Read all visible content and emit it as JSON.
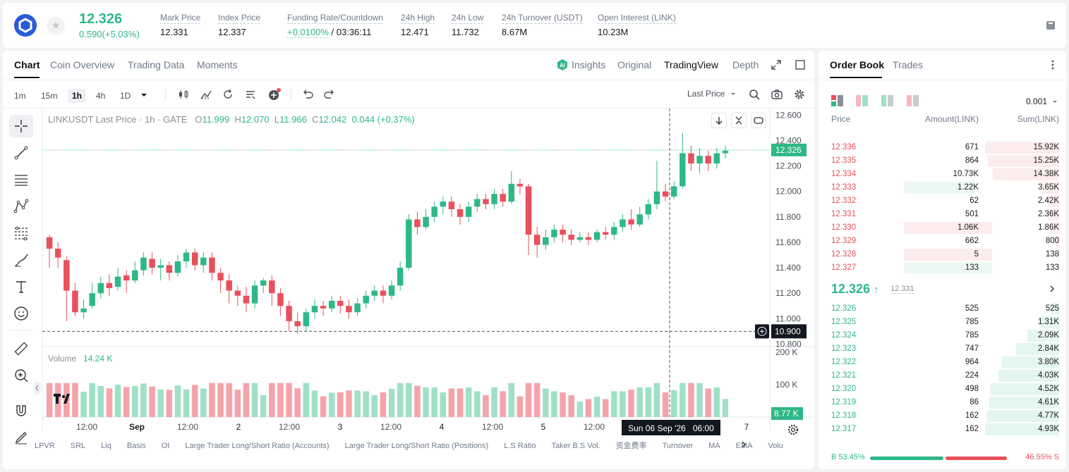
{
  "ticker": {
    "last_price": "12.326",
    "change": "0.590(+5.03%)",
    "stats": [
      {
        "label": "Mark Price",
        "value": "12.331"
      },
      {
        "label": "Index Price",
        "value": "12.337",
        "icon": "arrow-up-right-icon"
      },
      {
        "label": "Funding Rate/Countdown",
        "value_green": "+0.0100%",
        "value": " / 03:36:11"
      },
      {
        "label": "24h High",
        "value": "12.471"
      },
      {
        "label": "24h Low",
        "value": "11.732"
      },
      {
        "label": "24h Turnover (USDT)",
        "value": "8.67M"
      },
      {
        "label": "Open Interest (LINK)",
        "value": "10.23M"
      }
    ]
  },
  "chart_tabs": [
    "Chart",
    "Coin Overview",
    "Trading Data",
    "Moments"
  ],
  "view_tabs": [
    "Insights",
    "Original",
    "TradingView",
    "Depth"
  ],
  "timeframes": [
    "1m",
    "15m",
    "1h",
    "4h",
    "1D"
  ],
  "price_source": "Last Price",
  "legend": {
    "title": "LINKUSDT Last Price · 1h · GATE",
    "o_label": "O",
    "o": "11.999",
    "h_label": "H",
    "h": "12.070",
    "l_label": "L",
    "l": "11.966",
    "c_label": "C",
    "c": "12.042",
    "chg": "0.044 (+0.37%)"
  },
  "volume_legend": {
    "label": "Volume",
    "value": "14.24 K"
  },
  "crosshair": {
    "price": "10.900",
    "time": "Sun 06 Sep '26   06:00"
  },
  "volume_last_tag": "8.77 K",
  "indicators": [
    "LPVR",
    "SRL",
    "Liq",
    "Basis",
    "OI",
    "Large Trader Long/Short Ratio (Accounts)",
    "Large Trader Long/Short Ratio (Positions)",
    "L.S Ratio",
    "Taker B.S Vol.",
    "资金费率",
    "Turnover",
    "MA",
    "EMA",
    "Volu"
  ],
  "colors": {
    "up": "#2eb886",
    "down": "#e8505b"
  },
  "chart_data": {
    "type": "candlestick",
    "pair": "LINKUSDT",
    "interval": "1h",
    "y_ticks": [
      "12.600",
      "12.400",
      "12.200",
      "12.000",
      "11.800",
      "11.600",
      "11.400",
      "11.200",
      "11.000",
      "10.800"
    ],
    "ylim": [
      10.78,
      12.63
    ],
    "x_ticks": [
      "12:00",
      "Sep",
      "12:00",
      "2",
      "12:00",
      "3",
      "12:00",
      "4",
      "12:00",
      "5",
      "12:00",
      "6",
      "7"
    ],
    "volume_ticks": [
      "200 K",
      "100 K"
    ],
    "volume_max": 200,
    "last_price_tag": "12.326",
    "ohlc_keypoints": [
      [
        11.64,
        11.55,
        11.66,
        11.4
      ],
      [
        11.55,
        11.48,
        11.6,
        11.4
      ],
      [
        11.46,
        11.22,
        11.49,
        10.98
      ],
      [
        11.22,
        11.05,
        11.28,
        11.02
      ],
      [
        11.05,
        11.08,
        11.15,
        11.0
      ],
      [
        11.1,
        11.2,
        11.28,
        11.08
      ],
      [
        11.2,
        11.28,
        11.33,
        11.16
      ],
      [
        11.28,
        11.24,
        11.35,
        11.18
      ],
      [
        11.25,
        11.33,
        11.4,
        11.22
      ],
      [
        11.34,
        11.3,
        11.38,
        11.2
      ],
      [
        11.3,
        11.38,
        11.45,
        11.28
      ],
      [
        11.38,
        11.48,
        11.52,
        11.34
      ],
      [
        11.47,
        11.4,
        11.52,
        11.35
      ],
      [
        11.4,
        11.42,
        11.47,
        11.3
      ],
      [
        11.42,
        11.36,
        11.45,
        11.3
      ],
      [
        11.36,
        11.45,
        11.5,
        11.33
      ],
      [
        11.45,
        11.52,
        11.55,
        11.4
      ],
      [
        11.52,
        11.42,
        11.55,
        11.38
      ],
      [
        11.42,
        11.48,
        11.52,
        11.36
      ],
      [
        11.48,
        11.36,
        11.52,
        11.3
      ],
      [
        11.36,
        11.3,
        11.4,
        11.2
      ],
      [
        11.3,
        11.22,
        11.35,
        11.12
      ],
      [
        11.22,
        11.18,
        11.26,
        11.1
      ],
      [
        11.18,
        11.12,
        11.25,
        11.05
      ],
      [
        11.12,
        11.26,
        11.3,
        11.08
      ],
      [
        11.26,
        11.3,
        11.32,
        11.2
      ],
      [
        11.3,
        11.2,
        11.34,
        11.1
      ],
      [
        11.2,
        11.1,
        11.24,
        11.02
      ],
      [
        11.1,
        10.98,
        11.14,
        10.9
      ],
      [
        10.98,
        10.94,
        11.05,
        10.88
      ],
      [
        10.94,
        11.05,
        11.08,
        10.9
      ],
      [
        11.05,
        11.1,
        11.15,
        11.0
      ],
      [
        11.1,
        11.08,
        11.14,
        11.02
      ],
      [
        11.08,
        11.14,
        11.18,
        11.05
      ],
      [
        11.14,
        11.1,
        11.18,
        11.04
      ],
      [
        11.1,
        11.05,
        11.15,
        11.0
      ],
      [
        11.05,
        11.12,
        11.16,
        11.02
      ],
      [
        11.12,
        11.18,
        11.22,
        11.08
      ],
      [
        11.18,
        11.22,
        11.26,
        11.14
      ],
      [
        11.22,
        11.18,
        11.26,
        11.12
      ],
      [
        11.18,
        11.26,
        11.3,
        11.15
      ],
      [
        11.26,
        11.4,
        11.45,
        11.22
      ],
      [
        11.4,
        11.78,
        11.82,
        11.38
      ],
      [
        11.78,
        11.72,
        11.84,
        11.66
      ],
      [
        11.72,
        11.8,
        11.86,
        11.7
      ],
      [
        11.8,
        11.88,
        11.92,
        11.76
      ],
      [
        11.88,
        11.92,
        11.96,
        11.82
      ],
      [
        11.92,
        11.86,
        11.96,
        11.8
      ],
      [
        11.86,
        11.8,
        11.9,
        11.74
      ],
      [
        11.8,
        11.88,
        11.92,
        11.76
      ],
      [
        11.88,
        11.94,
        11.98,
        11.84
      ],
      [
        11.94,
        11.9,
        11.98,
        11.86
      ],
      [
        11.9,
        11.98,
        12.02,
        11.86
      ],
      [
        11.98,
        11.92,
        12.02,
        11.88
      ],
      [
        11.92,
        12.06,
        12.16,
        11.9
      ],
      [
        12.06,
        12.04,
        12.1,
        11.98
      ],
      [
        12.04,
        11.66,
        12.06,
        11.5
      ],
      [
        11.66,
        11.58,
        11.72,
        11.48
      ],
      [
        11.58,
        11.64,
        11.7,
        11.54
      ],
      [
        11.64,
        11.7,
        11.74,
        11.6
      ],
      [
        11.7,
        11.66,
        11.74,
        11.6
      ],
      [
        11.66,
        11.62,
        11.7,
        11.58
      ],
      [
        11.62,
        11.64,
        11.68,
        11.6
      ],
      [
        11.64,
        11.62,
        11.68,
        11.58
      ],
      [
        11.62,
        11.68,
        11.7,
        11.6
      ],
      [
        11.68,
        11.66,
        11.72,
        11.62
      ],
      [
        11.66,
        11.72,
        11.76,
        11.62
      ],
      [
        11.72,
        11.78,
        11.82,
        11.68
      ],
      [
        11.78,
        11.74,
        11.86,
        11.7
      ],
      [
        11.74,
        11.82,
        11.88,
        11.72
      ],
      [
        11.82,
        11.9,
        11.94,
        11.78
      ],
      [
        11.9,
        12.0,
        12.24,
        11.86
      ],
      [
        12.0,
        11.96,
        12.06,
        11.92
      ],
      [
        11.96,
        12.04,
        12.08,
        11.94
      ],
      [
        12.04,
        12.3,
        12.46,
        12.02
      ],
      [
        12.3,
        12.22,
        12.36,
        12.16
      ],
      [
        12.22,
        12.28,
        12.34,
        12.14
      ],
      [
        12.28,
        12.22,
        12.32,
        12.16
      ],
      [
        12.22,
        12.3,
        12.34,
        12.18
      ],
      [
        12.3,
        12.32,
        12.36,
        12.26
      ]
    ]
  },
  "order_book": {
    "tabs": [
      "Order Book",
      "Trades"
    ],
    "precision": "0.001",
    "headers": {
      "price": "Price",
      "amount": "Amount(LINK)",
      "sum": "Sum(LINK)"
    },
    "asks": [
      {
        "price": "12.336",
        "amount": "671",
        "sum": "15.92K",
        "sum_pct": 100,
        "amt_pct": 0
      },
      {
        "price": "12.335",
        "amount": "864",
        "sum": "15.25K",
        "sum_pct": 96,
        "amt_pct": 0
      },
      {
        "price": "12.334",
        "amount": "10.73K",
        "sum": "14.38K",
        "sum_pct": 90,
        "amt_pct": 0
      },
      {
        "price": "12.333",
        "amount": "1.22K",
        "sum": "3.65K",
        "sum_pct": 23,
        "amt_pct": 100,
        "amt_side": "buy"
      },
      {
        "price": "12.332",
        "amount": "62",
        "sum": "2.42K",
        "sum_pct": 15,
        "amt_pct": 0
      },
      {
        "price": "12.331",
        "amount": "501",
        "sum": "2.36K",
        "sum_pct": 15,
        "amt_pct": 0
      },
      {
        "price": "12.330",
        "amount": "1.06K",
        "sum": "1.86K",
        "sum_pct": 12,
        "amt_pct": 100,
        "amt_side": "sell"
      },
      {
        "price": "12.329",
        "amount": "662",
        "sum": "800",
        "sum_pct": 5,
        "amt_pct": 0
      },
      {
        "price": "12.328",
        "amount": "5",
        "sum": "138",
        "sum_pct": 1,
        "amt_pct": 100,
        "amt_side": "sell"
      },
      {
        "price": "12.327",
        "amount": "133",
        "sum": "133",
        "sum_pct": 1,
        "amt_pct": 100,
        "amt_side": "buy"
      }
    ],
    "mid": {
      "price": "12.326",
      "mark": "12.331"
    },
    "bids": [
      {
        "price": "12.326",
        "amount": "525",
        "sum": "525",
        "sum_pct": 11
      },
      {
        "price": "12.325",
        "amount": "785",
        "sum": "1.31K",
        "sum_pct": 27
      },
      {
        "price": "12.324",
        "amount": "785",
        "sum": "2.09K",
        "sum_pct": 43
      },
      {
        "price": "12.323",
        "amount": "747",
        "sum": "2.84K",
        "sum_pct": 58
      },
      {
        "price": "12.322",
        "amount": "964",
        "sum": "3.80K",
        "sum_pct": 77
      },
      {
        "price": "12.321",
        "amount": "224",
        "sum": "4.03K",
        "sum_pct": 82
      },
      {
        "price": "12.320",
        "amount": "498",
        "sum": "4.52K",
        "sum_pct": 92
      },
      {
        "price": "12.319",
        "amount": "86",
        "sum": "4.61K",
        "sum_pct": 94
      },
      {
        "price": "12.318",
        "amount": "162",
        "sum": "4.77K",
        "sum_pct": 97
      },
      {
        "price": "12.317",
        "amount": "162",
        "sum": "4.93K",
        "sum_pct": 100
      }
    ],
    "ratio": {
      "buy_label": "B 53.45%",
      "sell_label": "46.55% S",
      "buy_pct": 53.45
    }
  }
}
